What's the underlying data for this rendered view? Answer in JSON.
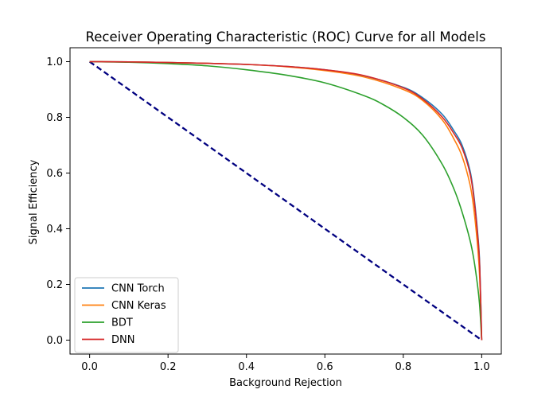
{
  "chart_data": {
    "type": "line",
    "title": "Receiver Operating Characteristic (ROC) Curve for all Models",
    "xlabel": "Background Rejection",
    "ylabel": "Signal Efficiency",
    "xlim": [
      -0.05,
      1.05
    ],
    "ylim": [
      -0.05,
      1.05
    ],
    "grid": false,
    "legend_position": "lower-left",
    "x_ticks": [
      "0.0",
      "0.2",
      "0.4",
      "0.6",
      "0.8",
      "1.0"
    ],
    "y_ticks": [
      "0.0",
      "0.2",
      "0.4",
      "0.6",
      "0.8",
      "1.0"
    ],
    "series": [
      {
        "name": "CNN Torch",
        "color": "#1f77b4",
        "x": [
          0.0,
          0.1,
          0.2,
          0.3,
          0.4,
          0.5,
          0.6,
          0.7,
          0.8,
          0.85,
          0.9,
          0.93,
          0.95,
          0.97,
          0.98,
          0.99,
          0.995,
          1.0
        ],
        "y": [
          1.0,
          0.999,
          0.997,
          0.994,
          0.99,
          0.983,
          0.971,
          0.949,
          0.908,
          0.87,
          0.81,
          0.75,
          0.7,
          0.61,
          0.52,
          0.38,
          0.27,
          0.0
        ]
      },
      {
        "name": "CNN Keras",
        "color": "#ff7f0e",
        "x": [
          0.0,
          0.1,
          0.2,
          0.3,
          0.4,
          0.5,
          0.6,
          0.7,
          0.8,
          0.85,
          0.9,
          0.93,
          0.95,
          0.97,
          0.98,
          0.99,
          0.995,
          1.0
        ],
        "y": [
          1.0,
          0.999,
          0.997,
          0.994,
          0.99,
          0.982,
          0.968,
          0.945,
          0.9,
          0.86,
          0.79,
          0.72,
          0.66,
          0.56,
          0.47,
          0.33,
          0.22,
          0.0
        ]
      },
      {
        "name": "BDT",
        "color": "#2ca02c",
        "x": [
          0.0,
          0.1,
          0.2,
          0.3,
          0.4,
          0.5,
          0.6,
          0.7,
          0.75,
          0.8,
          0.85,
          0.9,
          0.93,
          0.95,
          0.97,
          0.98,
          0.99,
          0.995,
          1.0
        ],
        "y": [
          1.0,
          0.998,
          0.993,
          0.985,
          0.971,
          0.952,
          0.924,
          0.878,
          0.845,
          0.8,
          0.735,
          0.63,
          0.54,
          0.46,
          0.36,
          0.29,
          0.19,
          0.12,
          0.0
        ]
      },
      {
        "name": "DNN",
        "color": "#d62728",
        "x": [
          0.0,
          0.1,
          0.2,
          0.3,
          0.4,
          0.5,
          0.6,
          0.7,
          0.8,
          0.85,
          0.9,
          0.93,
          0.95,
          0.97,
          0.98,
          0.99,
          0.995,
          1.0
        ],
        "y": [
          1.0,
          0.999,
          0.997,
          0.994,
          0.99,
          0.983,
          0.971,
          0.95,
          0.906,
          0.865,
          0.8,
          0.74,
          0.69,
          0.6,
          0.51,
          0.37,
          0.26,
          0.0
        ]
      }
    ],
    "reference_line": {
      "color": "#000080",
      "style": "dashed",
      "x": [
        0.0,
        1.0
      ],
      "y": [
        1.0,
        0.0
      ]
    }
  }
}
